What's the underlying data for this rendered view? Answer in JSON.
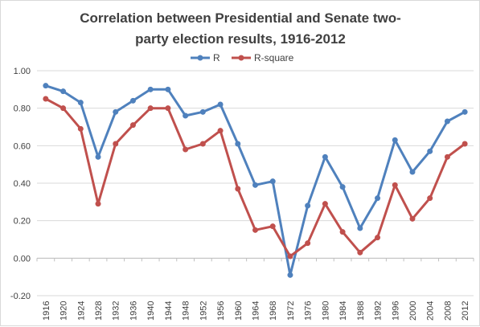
{
  "chart_data": {
    "type": "line",
    "title_line1": "Correlation  between Presidential  and Senate two-",
    "title_line2": "party election results, 1916-2012",
    "xlabel": "",
    "ylabel": "",
    "ylim": [
      -0.2,
      1.0
    ],
    "y_ticks": [
      "1.00",
      "0.80",
      "0.60",
      "0.40",
      "0.20",
      "0.00",
      "-0.20"
    ],
    "y_tick_values": [
      1.0,
      0.8,
      0.6,
      0.4,
      0.2,
      0.0,
      -0.2
    ],
    "grid": true,
    "legend_position": "top",
    "categories": [
      "1916",
      "1920",
      "1924",
      "1928",
      "1932",
      "1936",
      "1940",
      "1944",
      "1948",
      "1952",
      "1956",
      "1960",
      "1964",
      "1968",
      "1972",
      "1976",
      "1980",
      "1984",
      "1988",
      "1992",
      "1996",
      "2000",
      "2004",
      "2008",
      "2012"
    ],
    "series": [
      {
        "name": "R",
        "color": "#4f81bd",
        "values": [
          0.92,
          0.89,
          0.83,
          0.54,
          0.78,
          0.84,
          0.9,
          0.9,
          0.76,
          0.78,
          0.82,
          0.61,
          0.39,
          0.41,
          -0.09,
          0.28,
          0.54,
          0.38,
          0.16,
          0.32,
          0.63,
          0.46,
          0.57,
          0.73,
          0.78
        ]
      },
      {
        "name": "R-square",
        "color": "#c0504d",
        "values": [
          0.85,
          0.8,
          0.69,
          0.29,
          0.61,
          0.71,
          0.8,
          0.8,
          0.58,
          0.61,
          0.68,
          0.37,
          0.15,
          0.17,
          0.01,
          0.08,
          0.29,
          0.14,
          0.03,
          0.11,
          0.39,
          0.21,
          0.32,
          0.54,
          0.61
        ]
      }
    ]
  }
}
